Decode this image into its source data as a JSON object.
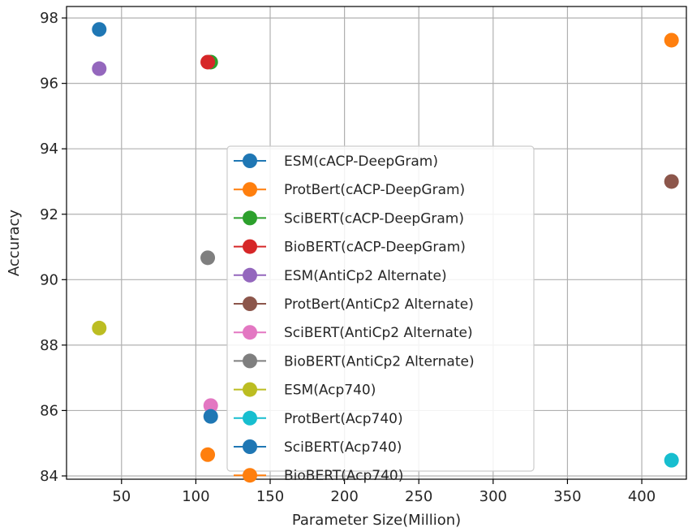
{
  "chart_data": {
    "type": "scatter",
    "xlabel": "Parameter Size(Million)",
    "ylabel": "Accuracy",
    "xlim": [
      13,
      430
    ],
    "ylim": [
      83.9,
      98.35
    ],
    "xticks": [
      50,
      100,
      150,
      200,
      250,
      300,
      350,
      400
    ],
    "yticks": [
      84,
      86,
      88,
      90,
      92,
      94,
      96,
      98
    ],
    "grid": true,
    "legend_position": "center",
    "series": [
      {
        "name": "ESM(cACP-DeepGram)",
        "color": "#1f77b4",
        "points": [
          [
            35,
            97.65
          ]
        ]
      },
      {
        "name": "ProtBert(cACP-DeepGram)",
        "color": "#ff7f0e",
        "points": [
          [
            420,
            97.32
          ]
        ]
      },
      {
        "name": "SciBERT(cACP-DeepGram)",
        "color": "#2ca02c",
        "points": [
          [
            110,
            96.65
          ]
        ]
      },
      {
        "name": "BioBERT(cACP-DeepGram)",
        "color": "#d62728",
        "points": [
          [
            108,
            96.65
          ]
        ]
      },
      {
        "name": "ESM(AntiCp2 Alternate)",
        "color": "#9467bd",
        "points": [
          [
            35,
            96.45
          ]
        ]
      },
      {
        "name": "ProtBert(AntiCp2 Alternate)",
        "color": "#8c564b",
        "points": [
          [
            420,
            93.0
          ]
        ]
      },
      {
        "name": "SciBERT(AntiCp2 Alternate)",
        "color": "#e377c2",
        "points": [
          [
            110,
            86.15
          ]
        ]
      },
      {
        "name": "BioBERT(AntiCp2 Alternate)",
        "color": "#7f7f7f",
        "points": [
          [
            108,
            90.67
          ]
        ]
      },
      {
        "name": "ESM(Acp740)",
        "color": "#bcbd22",
        "points": [
          [
            35,
            88.52
          ]
        ]
      },
      {
        "name": "ProtBert(Acp740)",
        "color": "#17becf",
        "points": [
          [
            420,
            84.48
          ]
        ]
      },
      {
        "name": "SciBERT(Acp740)",
        "color": "#1f77b4",
        "points": [
          [
            110,
            85.82
          ]
        ]
      },
      {
        "name": "BioBERT(Acp740)",
        "color": "#ff7f0e",
        "points": [
          [
            108,
            84.65
          ]
        ]
      }
    ]
  }
}
